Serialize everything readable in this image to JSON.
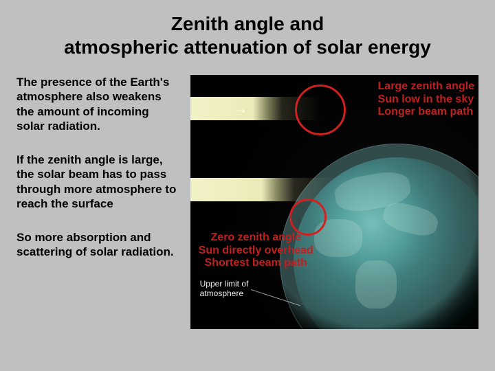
{
  "title_line1": "Zenith angle and",
  "title_line2": "atmospheric attenuation of solar energy",
  "paragraphs": {
    "p1": "The presence of the Earth's atmosphere also weakens the amount of incoming solar radiation.",
    "p2": "If the zenith angle is large, the solar beam has to pass through more atmosphere to reach the surface",
    "p3": "So more absorption and scattering of solar radiation."
  },
  "figure": {
    "type": "infographic",
    "background_color": "#000000",
    "earth_colors": [
      "#6fb8b0",
      "#3a8a85",
      "#1f5a58",
      "#12403e",
      "#0a2624",
      "#031513"
    ],
    "beam_color": "#fffdd0",
    "circle_color": "#d02020",
    "annotation_top": {
      "line1": "Large zenith angle",
      "line2": "Sun low in the sky",
      "line3": "Longer beam path",
      "color": "#c02020",
      "fontsize": 16
    },
    "annotation_mid": {
      "line1": "Zero zenith angle",
      "line2": "Sun directly overhead",
      "line3": "Shortest beam path",
      "color": "#c02020",
      "fontsize": 16
    },
    "annotation_atmo": {
      "line1": "Upper limit of",
      "line2": "atmosphere",
      "color": "#eeeeee",
      "fontsize": 12
    },
    "arrow_glyph": "→"
  },
  "page_background_color": "#c0c0c0",
  "title_fontsize": 28,
  "paragraph_fontsize": 17
}
